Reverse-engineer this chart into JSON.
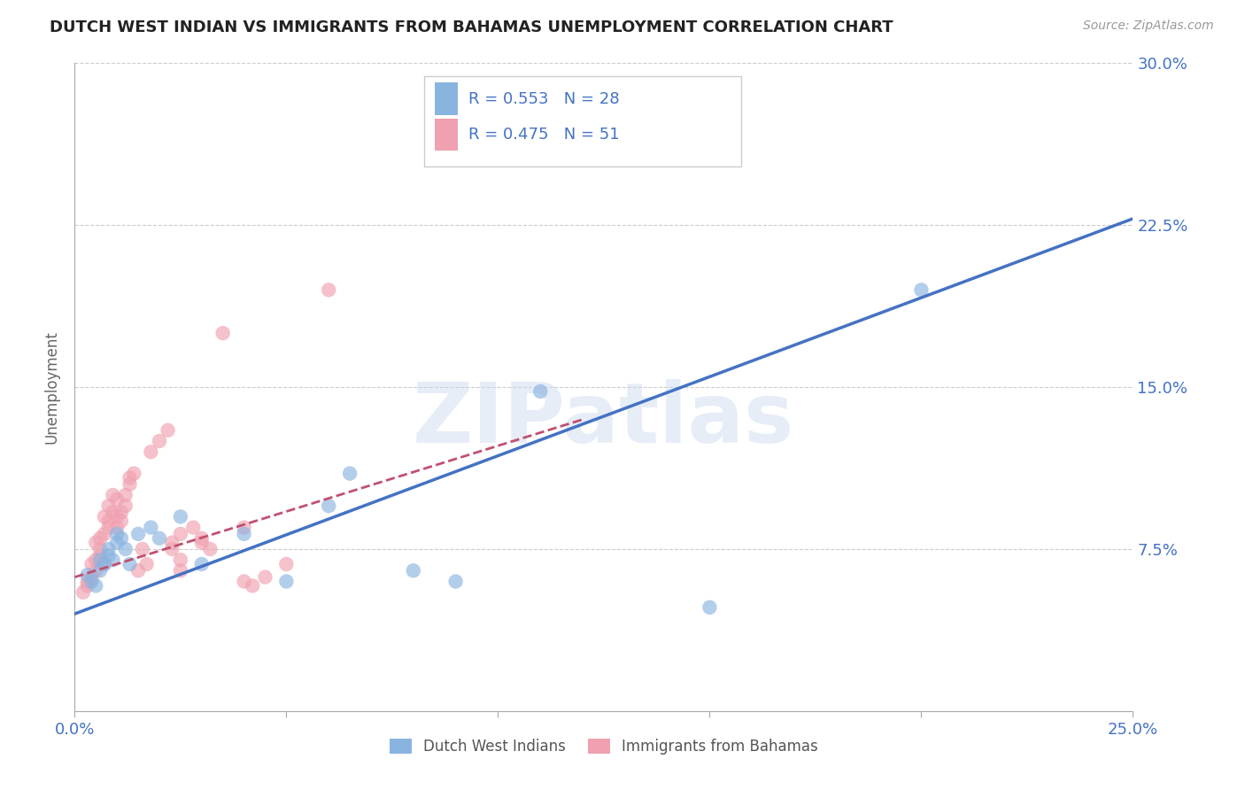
{
  "title": "DUTCH WEST INDIAN VS IMMIGRANTS FROM BAHAMAS UNEMPLOYMENT CORRELATION CHART",
  "source": "Source: ZipAtlas.com",
  "ylabel": "Unemployment",
  "x_min": 0.0,
  "x_max": 0.25,
  "y_min": 0.0,
  "y_max": 0.3,
  "x_ticks": [
    0.0,
    0.05,
    0.1,
    0.15,
    0.2,
    0.25
  ],
  "x_tick_labels": [
    "0.0%",
    "",
    "",
    "",
    "",
    "25.0%"
  ],
  "y_ticks": [
    0.0,
    0.075,
    0.15,
    0.225,
    0.3
  ],
  "y_tick_labels": [
    "",
    "7.5%",
    "15.0%",
    "22.5%",
    "30.0%"
  ],
  "legend_label_blue": "Dutch West Indians",
  "legend_label_pink": "Immigrants from Bahamas",
  "r_blue": 0.553,
  "n_blue": 28,
  "r_pink": 0.475,
  "n_pink": 51,
  "blue_color": "#8ab4e0",
  "pink_color": "#f0a0b0",
  "line_blue": "#4472c4",
  "line_pink": "#c05070",
  "watermark": "ZIPatlas",
  "blue_scatter": [
    [
      0.003,
      0.063
    ],
    [
      0.004,
      0.06
    ],
    [
      0.005,
      0.058
    ],
    [
      0.006,
      0.065
    ],
    [
      0.006,
      0.07
    ],
    [
      0.007,
      0.068
    ],
    [
      0.008,
      0.072
    ],
    [
      0.008,
      0.075
    ],
    [
      0.009,
      0.07
    ],
    [
      0.01,
      0.078
    ],
    [
      0.01,
      0.082
    ],
    [
      0.011,
      0.08
    ],
    [
      0.012,
      0.075
    ],
    [
      0.013,
      0.068
    ],
    [
      0.015,
      0.082
    ],
    [
      0.018,
      0.085
    ],
    [
      0.02,
      0.08
    ],
    [
      0.025,
      0.09
    ],
    [
      0.03,
      0.068
    ],
    [
      0.04,
      0.082
    ],
    [
      0.05,
      0.06
    ],
    [
      0.06,
      0.095
    ],
    [
      0.065,
      0.11
    ],
    [
      0.08,
      0.065
    ],
    [
      0.09,
      0.06
    ],
    [
      0.11,
      0.148
    ],
    [
      0.15,
      0.048
    ],
    [
      0.2,
      0.195
    ]
  ],
  "pink_scatter": [
    [
      0.002,
      0.055
    ],
    [
      0.003,
      0.06
    ],
    [
      0.003,
      0.058
    ],
    [
      0.004,
      0.062
    ],
    [
      0.004,
      0.068
    ],
    [
      0.005,
      0.065
    ],
    [
      0.005,
      0.07
    ],
    [
      0.005,
      0.078
    ],
    [
      0.006,
      0.072
    ],
    [
      0.006,
      0.075
    ],
    [
      0.006,
      0.08
    ],
    [
      0.007,
      0.068
    ],
    [
      0.007,
      0.082
    ],
    [
      0.007,
      0.09
    ],
    [
      0.008,
      0.085
    ],
    [
      0.008,
      0.088
    ],
    [
      0.008,
      0.095
    ],
    [
      0.009,
      0.092
    ],
    [
      0.009,
      0.1
    ],
    [
      0.01,
      0.098
    ],
    [
      0.01,
      0.085
    ],
    [
      0.01,
      0.09
    ],
    [
      0.011,
      0.092
    ],
    [
      0.011,
      0.088
    ],
    [
      0.012,
      0.095
    ],
    [
      0.012,
      0.1
    ],
    [
      0.013,
      0.105
    ],
    [
      0.013,
      0.108
    ],
    [
      0.014,
      0.11
    ],
    [
      0.015,
      0.065
    ],
    [
      0.016,
      0.075
    ],
    [
      0.017,
      0.068
    ],
    [
      0.018,
      0.12
    ],
    [
      0.02,
      0.125
    ],
    [
      0.022,
      0.13
    ],
    [
      0.023,
      0.075
    ],
    [
      0.023,
      0.078
    ],
    [
      0.025,
      0.082
    ],
    [
      0.025,
      0.065
    ],
    [
      0.025,
      0.07
    ],
    [
      0.028,
      0.085
    ],
    [
      0.03,
      0.08
    ],
    [
      0.03,
      0.078
    ],
    [
      0.032,
      0.075
    ],
    [
      0.035,
      0.175
    ],
    [
      0.04,
      0.085
    ],
    [
      0.04,
      0.06
    ],
    [
      0.042,
      0.058
    ],
    [
      0.045,
      0.062
    ],
    [
      0.05,
      0.068
    ],
    [
      0.06,
      0.195
    ]
  ],
  "blue_trend_x": [
    0.0,
    0.25
  ],
  "blue_trend_y": [
    0.045,
    0.228
  ],
  "pink_trend_x": [
    0.0,
    0.12
  ],
  "pink_trend_y": [
    0.062,
    0.135
  ]
}
